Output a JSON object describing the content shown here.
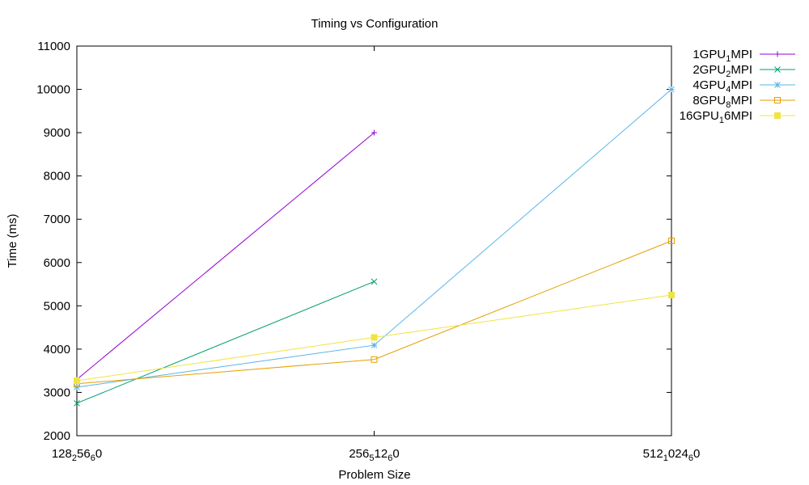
{
  "chart_data": {
    "type": "line",
    "title": "Timing vs Configuration",
    "xlabel": "Problem Size",
    "ylabel": "Time (ms)",
    "ylim": [
      2000,
      11000
    ],
    "yticks": [
      2000,
      3000,
      4000,
      5000,
      6000,
      7000,
      8000,
      9000,
      10000,
      11000
    ],
    "grid": false,
    "legend_position": "top-right, outside plot",
    "categories": [
      {
        "main": "128",
        "sub1": "2",
        "mid": "56",
        "sub2": "6",
        "tail": "0"
      },
      {
        "main": "256",
        "sub1": "5",
        "mid": "12",
        "sub2": "6",
        "tail": "0"
      },
      {
        "main": "512",
        "sub1": "1",
        "mid": "024",
        "sub2": "6",
        "tail": "0"
      }
    ],
    "series": [
      {
        "name_main": "1GPU",
        "name_sub": "1",
        "name_tail": "MPI",
        "color": "#9400d3",
        "marker": "plus",
        "values": [
          3300,
          9000,
          null
        ]
      },
      {
        "name_main": "2GPU",
        "name_sub": "2",
        "name_tail": "MPI",
        "color": "#009e73",
        "marker": "cross",
        "values": [
          2750,
          5560,
          null
        ]
      },
      {
        "name_main": "4GPU",
        "name_sub": "4",
        "name_tail": "MPI",
        "color": "#56b4e9",
        "marker": "star",
        "values": [
          3120,
          4090,
          10000
        ]
      },
      {
        "name_main": "8GPU",
        "name_sub": "8",
        "name_tail": "MPI",
        "color": "#e69f00",
        "marker": "open-square",
        "values": [
          3200,
          3760,
          6500
        ]
      },
      {
        "name_main": "16GPU",
        "name_sub": "1",
        "name_tail": "6MPI",
        "color": "#f0e442",
        "marker": "filled-square",
        "values": [
          3270,
          4270,
          5250
        ]
      }
    ]
  }
}
